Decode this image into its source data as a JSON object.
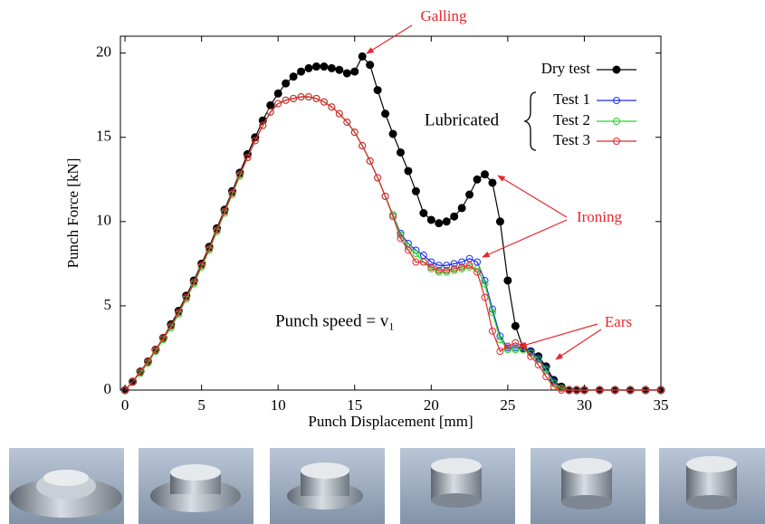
{
  "chart_data": {
    "type": "line",
    "x_label": "Punch Displacement [mm]",
    "y_label": "Punch Force [kN]",
    "xlim": [
      -0.3,
      35
    ],
    "ylim": [
      0,
      21
    ],
    "xticks": [
      0,
      5,
      10,
      15,
      20,
      25,
      30,
      35
    ],
    "yticks": [
      0,
      5,
      10,
      15,
      20
    ],
    "legend_group": "Lubricated",
    "annotations": [
      "Galling",
      "Ironing",
      "Ears",
      "Punch speed = v₁"
    ],
    "x": [
      0,
      0.5,
      1,
      1.5,
      2,
      2.5,
      3,
      3.5,
      4,
      4.5,
      5,
      5.5,
      6,
      6.5,
      7,
      7.5,
      8,
      8.5,
      9,
      9.5,
      10,
      10.5,
      11,
      11.5,
      12,
      12.5,
      13,
      13.5,
      14,
      14.5,
      15,
      15.5,
      16,
      16.5,
      17,
      17.5,
      18,
      18.5,
      19,
      19.5,
      20,
      20.5,
      21,
      21.5,
      22,
      22.5,
      23,
      23.5,
      24,
      24.5,
      25,
      25.5,
      26,
      26.5,
      27,
      27.5,
      28,
      28.5,
      29,
      29.5,
      30,
      31,
      32,
      33,
      34,
      35
    ],
    "series": [
      {
        "name": "Dry test",
        "color": "#000000",
        "filled": true,
        "values": [
          0,
          0.5,
          1.1,
          1.7,
          2.4,
          3.1,
          3.9,
          4.7,
          5.6,
          6.5,
          7.5,
          8.5,
          9.6,
          10.7,
          11.8,
          12.9,
          14.0,
          15.0,
          16.0,
          16.9,
          17.6,
          18.2,
          18.6,
          18.9,
          19.1,
          19.2,
          19.2,
          19.1,
          19.0,
          18.8,
          18.9,
          19.8,
          19.3,
          17.8,
          16.4,
          15.2,
          14.1,
          13.0,
          11.8,
          10.5,
          10.1,
          9.9,
          10.0,
          10.3,
          10.8,
          11.6,
          12.5,
          12.8,
          12.3,
          10.0,
          6.5,
          3.8,
          2.5,
          2.3,
          2.0,
          1.4,
          0.6,
          0.2,
          0,
          0,
          0,
          0,
          0,
          0,
          0,
          0
        ]
      },
      {
        "name": "Test 1",
        "color": "#1f2fe6",
        "filled": false,
        "values": [
          0,
          0.5,
          1.1,
          1.7,
          2.4,
          3.1,
          3.8,
          4.6,
          5.5,
          6.4,
          7.4,
          8.4,
          9.5,
          10.6,
          11.7,
          12.8,
          13.8,
          14.8,
          15.7,
          16.5,
          17.0,
          17.2,
          17.3,
          17.4,
          17.4,
          17.3,
          17.1,
          16.8,
          16.4,
          15.9,
          15.3,
          14.5,
          13.6,
          12.6,
          11.5,
          10.4,
          9.3,
          8.7,
          8.3,
          8.0,
          7.6,
          7.4,
          7.4,
          7.5,
          7.6,
          7.8,
          7.6,
          6.5,
          4.8,
          3.2,
          2.5,
          2.5,
          2.5,
          2.3,
          1.9,
          1.3,
          0.5,
          0.1,
          0,
          0,
          0,
          0,
          0,
          0,
          0,
          0
        ]
      },
      {
        "name": "Test 2",
        "color": "#27d627",
        "filled": false,
        "values": [
          0,
          0.5,
          1.0,
          1.6,
          2.3,
          3.0,
          3.7,
          4.5,
          5.4,
          6.3,
          7.3,
          8.3,
          9.4,
          10.5,
          11.6,
          12.7,
          13.8,
          14.8,
          15.7,
          16.5,
          17.0,
          17.2,
          17.3,
          17.4,
          17.4,
          17.3,
          17.1,
          16.8,
          16.4,
          15.9,
          15.3,
          14.5,
          13.6,
          12.6,
          11.5,
          10.4,
          9.2,
          8.5,
          8.1,
          7.6,
          7.2,
          7.0,
          7.0,
          7.1,
          7.2,
          7.3,
          7.2,
          6.3,
          4.6,
          3.0,
          2.4,
          2.4,
          2.4,
          2.2,
          1.8,
          1.2,
          0.4,
          0.1,
          0,
          0,
          0,
          0,
          0,
          0,
          0,
          0
        ]
      },
      {
        "name": "Test 3",
        "color": "#e8262b",
        "filled": false,
        "values": [
          0,
          0.5,
          1.1,
          1.7,
          2.4,
          3.1,
          3.8,
          4.6,
          5.5,
          6.4,
          7.4,
          8.4,
          9.5,
          10.6,
          11.7,
          12.8,
          13.8,
          14.8,
          15.7,
          16.5,
          17.0,
          17.2,
          17.3,
          17.4,
          17.4,
          17.3,
          17.1,
          16.8,
          16.4,
          15.9,
          15.3,
          14.5,
          13.6,
          12.6,
          11.5,
          10.3,
          9.0,
          8.3,
          7.6,
          7.6,
          7.3,
          7.1,
          7.1,
          7.2,
          7.3,
          7.4,
          7.0,
          5.5,
          3.5,
          2.3,
          2.6,
          2.8,
          2.6,
          2.0,
          1.5,
          0.8,
          0.2,
          0,
          0,
          0,
          0,
          0,
          0,
          0,
          0,
          0
        ]
      }
    ]
  }
}
